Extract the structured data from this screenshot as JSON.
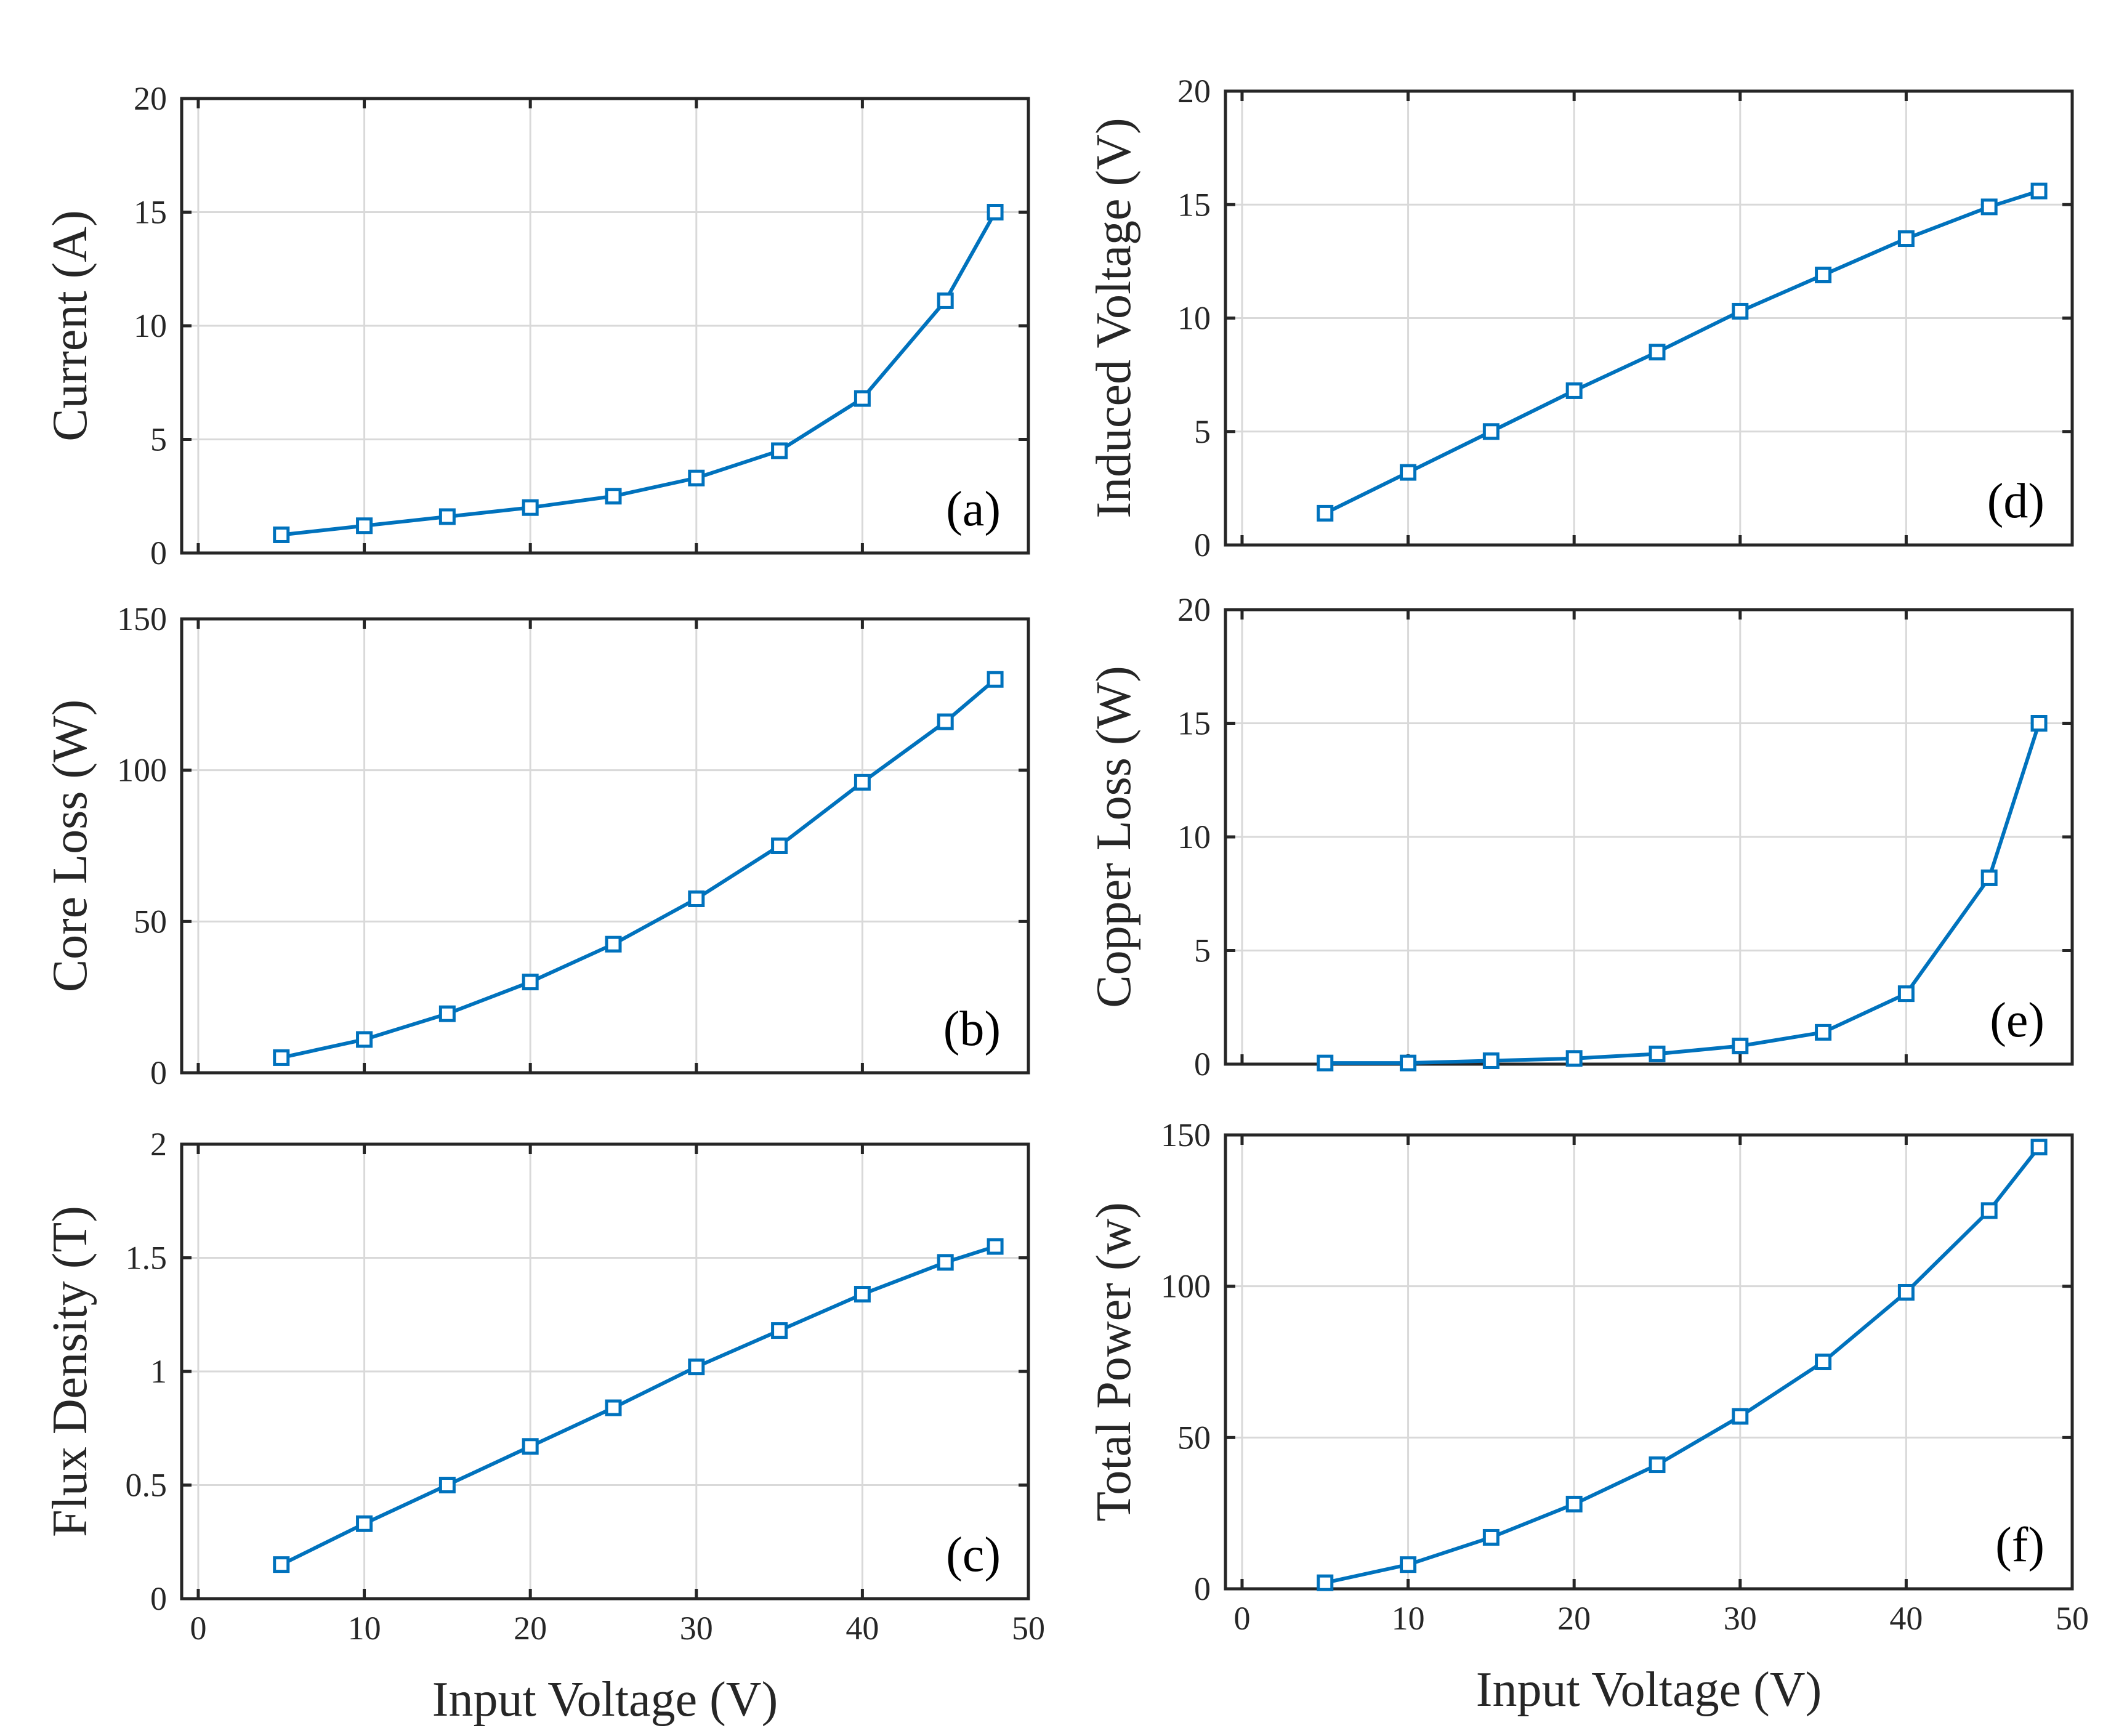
{
  "style": {
    "line_color": "#0072BD"
  },
  "chart_data": [
    {
      "id": "a",
      "type": "line",
      "panel_label": "(a)",
      "xlabel": "",
      "ylabel": "Current (A)",
      "xlim": [
        -1,
        50
      ],
      "ylim": [
        0,
        20
      ],
      "xticks": [
        0,
        10,
        20,
        30,
        40,
        50
      ],
      "yticks": [
        0,
        5,
        10,
        15,
        20
      ],
      "show_xtick_labels": false,
      "grid": true,
      "x": [
        5,
        10,
        15,
        20,
        25,
        30,
        35,
        40,
        45,
        48
      ],
      "series": [
        {
          "name": "Current",
          "values": [
            0.8,
            1.2,
            1.6,
            2.0,
            2.5,
            3.3,
            4.5,
            6.8,
            11.1,
            15.0
          ]
        }
      ]
    },
    {
      "id": "b",
      "type": "line",
      "panel_label": "(b)",
      "xlabel": "",
      "ylabel": "Core Loss (W)",
      "xlim": [
        -1,
        50
      ],
      "ylim": [
        0,
        150
      ],
      "xticks": [
        0,
        10,
        20,
        30,
        40,
        50
      ],
      "yticks": [
        0,
        50,
        100,
        150
      ],
      "show_xtick_labels": false,
      "grid": true,
      "x": [
        5,
        10,
        15,
        20,
        25,
        30,
        35,
        40,
        45,
        48
      ],
      "series": [
        {
          "name": "Core Loss",
          "values": [
            5,
            11,
            19.5,
            30,
            42.5,
            57.5,
            75,
            96,
            116,
            130
          ]
        }
      ]
    },
    {
      "id": "c",
      "type": "line",
      "panel_label": "(c)",
      "xlabel": "Input Voltage (V)",
      "ylabel": "Flux Density (T)",
      "xlim": [
        -1,
        50
      ],
      "ylim": [
        0,
        2
      ],
      "xticks": [
        0,
        10,
        20,
        30,
        40,
        50
      ],
      "yticks": [
        0,
        0.5,
        1,
        1.5,
        2
      ],
      "ytick_labels": [
        "0",
        "0.5",
        "1",
        "1.5",
        "2"
      ],
      "show_xtick_labels": true,
      "grid": true,
      "x": [
        5,
        10,
        15,
        20,
        25,
        30,
        35,
        40,
        45,
        48
      ],
      "series": [
        {
          "name": "Flux Density",
          "values": [
            0.15,
            0.33,
            0.5,
            0.67,
            0.84,
            1.02,
            1.18,
            1.34,
            1.48,
            1.55
          ]
        }
      ]
    },
    {
      "id": "d",
      "type": "line",
      "panel_label": "(d)",
      "xlabel": "",
      "ylabel": "Induced Voltage (V)",
      "xlim": [
        -1,
        50
      ],
      "ylim": [
        0,
        20
      ],
      "xticks": [
        0,
        10,
        20,
        30,
        40,
        50
      ],
      "yticks": [
        0,
        5,
        10,
        15,
        20
      ],
      "show_xtick_labels": false,
      "grid": true,
      "x": [
        5,
        10,
        15,
        20,
        25,
        30,
        35,
        40,
        45,
        48
      ],
      "series": [
        {
          "name": "Induced Voltage",
          "values": [
            1.4,
            3.2,
            5.0,
            6.8,
            8.5,
            10.3,
            11.9,
            13.5,
            14.9,
            15.6
          ]
        }
      ]
    },
    {
      "id": "e",
      "type": "line",
      "panel_label": "(e)",
      "xlabel": "",
      "ylabel": "Copper Loss (W)",
      "xlim": [
        -1,
        50
      ],
      "ylim": [
        0,
        20
      ],
      "xticks": [
        0,
        10,
        20,
        30,
        40,
        50
      ],
      "yticks": [
        0,
        5,
        10,
        15,
        20
      ],
      "show_xtick_labels": false,
      "grid": true,
      "x": [
        5,
        10,
        15,
        20,
        25,
        30,
        35,
        40,
        45,
        48
      ],
      "series": [
        {
          "name": "Copper Loss",
          "values": [
            0.05,
            0.05,
            0.15,
            0.25,
            0.45,
            0.8,
            1.4,
            3.1,
            8.2,
            15.0
          ]
        }
      ]
    },
    {
      "id": "f",
      "type": "line",
      "panel_label": "(f)",
      "xlabel": "Input Voltage (V)",
      "ylabel": "Total Power (w)",
      "xlim": [
        -1,
        50
      ],
      "ylim": [
        0,
        150
      ],
      "xticks": [
        0,
        10,
        20,
        30,
        40,
        50
      ],
      "yticks": [
        0,
        50,
        100,
        150
      ],
      "show_xtick_labels": true,
      "grid": true,
      "x": [
        5,
        10,
        15,
        20,
        25,
        30,
        35,
        40,
        45,
        48
      ],
      "series": [
        {
          "name": "Total Power",
          "values": [
            2,
            8,
            17,
            28,
            41,
            57,
            75,
            98,
            125,
            146
          ]
        }
      ]
    }
  ]
}
